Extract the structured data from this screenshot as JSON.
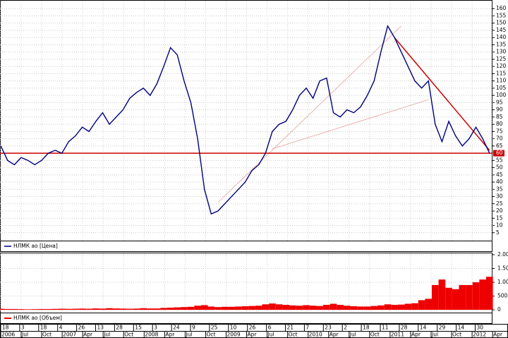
{
  "chart_data": [
    {
      "type": "line",
      "x": [
        "2006-04",
        "2006-05",
        "2006-06",
        "2006-07",
        "2006-08",
        "2006-09",
        "2006-10",
        "2006-11",
        "2006-12",
        "2007-01",
        "2007-02",
        "2007-03",
        "2007-04",
        "2007-05",
        "2007-06",
        "2007-07",
        "2007-08",
        "2007-09",
        "2007-10",
        "2007-11",
        "2007-12",
        "2008-01",
        "2008-02",
        "2008-03",
        "2008-04",
        "2008-05",
        "2008-06",
        "2008-07",
        "2008-08",
        "2008-09",
        "2008-10",
        "2008-11",
        "2008-12",
        "2009-01",
        "2009-02",
        "2009-03",
        "2009-04",
        "2009-05",
        "2009-06",
        "2009-07",
        "2009-08",
        "2009-09",
        "2009-10",
        "2009-11",
        "2009-12",
        "2010-01",
        "2010-02",
        "2010-03",
        "2010-04",
        "2010-05",
        "2010-06",
        "2010-07",
        "2010-08",
        "2010-09",
        "2010-10",
        "2010-11",
        "2010-12",
        "2011-01",
        "2011-02",
        "2011-03",
        "2011-04",
        "2011-05",
        "2011-06",
        "2011-07",
        "2011-08",
        "2011-09",
        "2011-10",
        "2011-11",
        "2011-12",
        "2012-01",
        "2012-02",
        "2012-03",
        "2012-04"
      ],
      "series": [
        {
          "name": "НЛМК ао [Цена]",
          "color": "#000080",
          "values": [
            65,
            55,
            52,
            57,
            55,
            52,
            55,
            60,
            62,
            60,
            68,
            72,
            78,
            75,
            82,
            88,
            80,
            85,
            90,
            98,
            102,
            105,
            100,
            108,
            120,
            133,
            128,
            110,
            95,
            70,
            35,
            18,
            20,
            25,
            30,
            35,
            40,
            48,
            52,
            60,
            75,
            80,
            82,
            90,
            100,
            105,
            98,
            110,
            112,
            88,
            85,
            90,
            88,
            92,
            100,
            110,
            130,
            148,
            140,
            130,
            120,
            110,
            105,
            110,
            80,
            68,
            82,
            72,
            65,
            70,
            78,
            70,
            60
          ]
        }
      ],
      "ylim": [
        0,
        165
      ],
      "yticks": [
        5,
        10,
        15,
        20,
        25,
        30,
        35,
        40,
        45,
        50,
        55,
        60,
        65,
        70,
        75,
        80,
        85,
        90,
        95,
        100,
        105,
        110,
        115,
        120,
        125,
        130,
        135,
        140,
        145,
        150,
        155,
        160
      ],
      "grid": true,
      "hline": {
        "value": 60,
        "label": "60",
        "color": "#cc0000"
      },
      "trendlines": [
        {
          "x": [
            "2011-02",
            "2012-04"
          ],
          "y": [
            140,
            62
          ],
          "color": "#cc0000"
        },
        {
          "x": [
            "2008-12",
            "2011-03"
          ],
          "y": [
            26,
            148
          ],
          "color": "#e8a0a0"
        },
        {
          "x": [
            "2009-08",
            "2011-07"
          ],
          "y": [
            63,
            97
          ],
          "color": "#e8a0a0"
        }
      ]
    },
    {
      "type": "bar",
      "series": [
        {
          "name": "НЛМК ао [Объем]",
          "color": "#ee0000",
          "values": [
            40,
            30,
            30,
            25,
            20,
            25,
            30,
            30,
            35,
            40,
            35,
            40,
            45,
            40,
            50,
            45,
            60,
            50,
            45,
            40,
            45,
            60,
            50,
            50,
            70,
            80,
            90,
            100,
            110,
            150,
            170,
            120,
            100,
            110,
            110,
            120,
            130,
            140,
            150,
            200,
            230,
            200,
            180,
            160,
            150,
            170,
            150,
            140,
            180,
            220,
            180,
            150,
            130,
            120,
            120,
            140,
            160,
            200,
            180,
            190,
            220,
            240,
            350,
            400,
            900,
            1100,
            800,
            750,
            900,
            900,
            1000,
            1100,
            1200
          ]
        }
      ],
      "ylim": [
        -100,
        2050
      ],
      "yticks": [
        0,
        500,
        {
          "value": 1000,
          "label": "1.00"
        },
        {
          "value": 1500,
          "label": "1.50"
        },
        {
          "value": 2000,
          "label": "2.00"
        }
      ],
      "xtick_days": [
        "18",
        "3",
        "18",
        "4",
        "26",
        "13",
        "28",
        "15",
        "3",
        "24",
        "9",
        "25",
        "10",
        "26",
        "6",
        "21",
        "7",
        "23",
        "2",
        "18",
        "11",
        "28",
        "14",
        "29",
        "14",
        "30"
      ],
      "xtick_periods": [
        "2006",
        "Jul",
        "Oct",
        "2007",
        "Apr",
        "Jul",
        "Oct",
        "2008",
        "Apr",
        "Jul",
        "Oct",
        "2009",
        "Apr",
        "Jul",
        "Oct",
        "2010",
        "Apr",
        "Jul",
        "Oct",
        "2011",
        "Apr",
        "Jul",
        "Oct",
        "2012",
        "Apr"
      ]
    }
  ]
}
